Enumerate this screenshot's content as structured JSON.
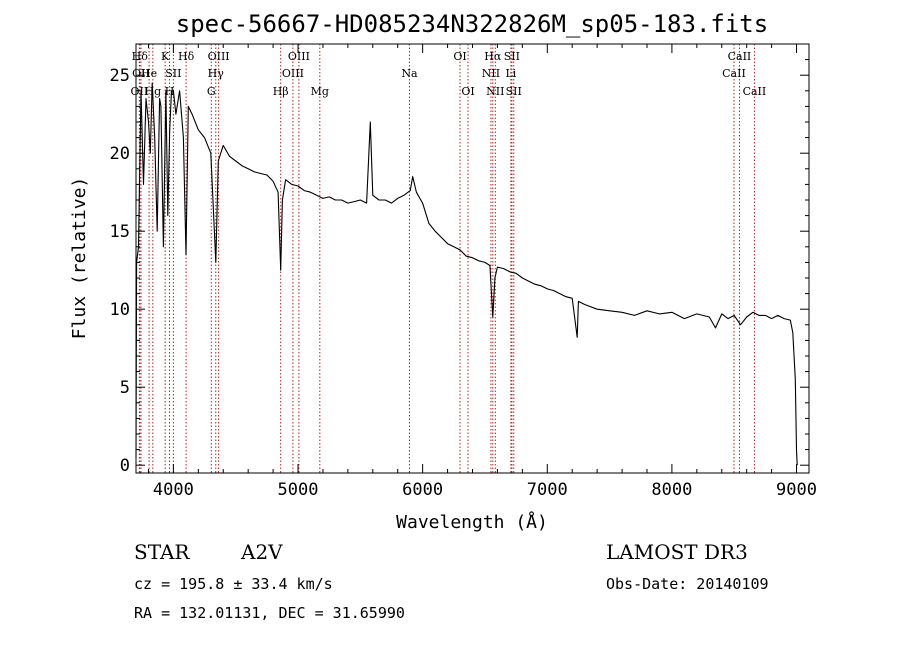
{
  "chart_data": {
    "type": "line",
    "title": "spec-56667-HD085234N322826M_sp05-183.fits",
    "xlabel": "Wavelength (Å)",
    "ylabel": "Flux (relative)",
    "xlim": [
      3700,
      9100
    ],
    "ylim": [
      -0.5,
      27
    ],
    "xticks": [
      4000,
      5000,
      6000,
      7000,
      8000,
      9000
    ],
    "yticks": [
      0,
      5,
      10,
      15,
      20,
      25
    ],
    "grid": false,
    "series": [
      {
        "name": "flux",
        "x": [
          3700,
          3705,
          3720,
          3740,
          3760,
          3780,
          3800,
          3815,
          3830,
          3850,
          3870,
          3889,
          3900,
          3920,
          3940,
          3955,
          3970,
          3985,
          4000,
          4020,
          4050,
          4080,
          4101,
          4120,
          4150,
          4200,
          4250,
          4300,
          4340,
          4360,
          4400,
          4450,
          4500,
          4550,
          4600,
          4650,
          4700,
          4750,
          4800,
          4840,
          4861,
          4875,
          4900,
          4950,
          5000,
          5050,
          5100,
          5150,
          5200,
          5250,
          5300,
          5350,
          5400,
          5450,
          5500,
          5550,
          5580,
          5600,
          5650,
          5700,
          5750,
          5800,
          5850,
          5900,
          5920,
          5950,
          6000,
          6050,
          6100,
          6150,
          6200,
          6250,
          6300,
          6350,
          6400,
          6450,
          6500,
          6540,
          6563,
          6580,
          6600,
          6650,
          6700,
          6750,
          6800,
          6850,
          6900,
          6950,
          7000,
          7050,
          7100,
          7150,
          7200,
          7240,
          7250,
          7300,
          7400,
          7500,
          7600,
          7700,
          7800,
          7900,
          8000,
          8100,
          8200,
          8300,
          8350,
          8400,
          8450,
          8500,
          8550,
          8600,
          8650,
          8700,
          8750,
          8800,
          8850,
          8900,
          8950,
          8970,
          8990,
          9000,
          9005
        ],
        "values": [
          0.5,
          13.0,
          14.0,
          24.0,
          18.0,
          23.5,
          22.0,
          20.0,
          24.5,
          21.0,
          15.0,
          23.5,
          23.0,
          14.0,
          24.0,
          16.0,
          21.5,
          24.0,
          24.0,
          22.5,
          24.0,
          21.0,
          13.5,
          23.0,
          22.5,
          21.5,
          21.0,
          20.0,
          13.0,
          19.5,
          20.5,
          19.8,
          19.5,
          19.2,
          19.0,
          18.8,
          18.7,
          18.6,
          18.2,
          17.5,
          12.5,
          17.0,
          18.3,
          18.0,
          17.9,
          17.6,
          17.5,
          17.3,
          17.1,
          17.2,
          17.0,
          17.0,
          16.8,
          16.9,
          17.0,
          16.8,
          22.0,
          17.3,
          17.0,
          17.0,
          16.8,
          17.1,
          17.3,
          17.6,
          18.5,
          17.5,
          16.8,
          15.5,
          15.0,
          14.6,
          14.2,
          14.0,
          13.8,
          13.4,
          13.3,
          13.1,
          13.0,
          12.8,
          9.5,
          12.0,
          12.7,
          12.6,
          12.4,
          12.3,
          12.0,
          11.8,
          11.6,
          11.5,
          11.3,
          11.2,
          11.0,
          10.8,
          10.7,
          8.2,
          10.5,
          10.3,
          10.0,
          9.9,
          9.8,
          9.6,
          9.9,
          9.7,
          9.8,
          9.4,
          9.7,
          9.5,
          8.8,
          9.7,
          9.4,
          9.6,
          9.0,
          9.5,
          9.8,
          9.6,
          9.6,
          9.4,
          9.6,
          9.4,
          9.3,
          8.5,
          5.5,
          1.0,
          0.0
        ],
        "color": "#000000"
      }
    ],
    "lines": [
      {
        "label": "Hδ",
        "x": 3730,
        "row": 1
      },
      {
        "label": "OII",
        "x": 3727,
        "row": 3
      },
      {
        "label": "OII",
        "x": 3740,
        "row": 2
      },
      {
        "label": "He",
        "x": 3805,
        "row": 2
      },
      {
        "label": "Hg",
        "x": 3835,
        "row": 3
      },
      {
        "label": "K",
        "x": 3934,
        "row": 1
      },
      {
        "label": "H",
        "x": 3969,
        "row": 3
      },
      {
        "label": "SII",
        "x": 4000,
        "row": 2
      },
      {
        "label": "Hδ",
        "x": 4102,
        "row": 1
      },
      {
        "label": "OIII",
        "x": 4363,
        "row": 1
      },
      {
        "label": "Hγ",
        "x": 4340,
        "row": 2
      },
      {
        "label": "G",
        "x": 4304,
        "row": 3
      },
      {
        "label": "Hβ",
        "x": 4861,
        "row": 3
      },
      {
        "label": "OIII",
        "x": 5007,
        "row": 1
      },
      {
        "label": "OIII",
        "x": 4959,
        "row": 2
      },
      {
        "label": "Mg",
        "x": 5175,
        "row": 3
      },
      {
        "label": "Na",
        "x": 5894,
        "row": 2
      },
      {
        "label": "OI",
        "x": 6300,
        "row": 1
      },
      {
        "label": "OI",
        "x": 6364,
        "row": 3
      },
      {
        "label": "Hα",
        "x": 6563,
        "row": 1
      },
      {
        "label": "NII",
        "x": 6548,
        "row": 2
      },
      {
        "label": "NII",
        "x": 6583,
        "row": 3
      },
      {
        "label": "SII",
        "x": 6716,
        "row": 1
      },
      {
        "label": "Li",
        "x": 6708,
        "row": 2
      },
      {
        "label": "SII",
        "x": 6731,
        "row": 3
      },
      {
        "label": "CaII",
        "x": 8542,
        "row": 1
      },
      {
        "label": "CaII",
        "x": 8498,
        "row": 2
      },
      {
        "label": "CaII",
        "x": 8662,
        "row": 3
      }
    ],
    "line_color": "#b22222"
  },
  "info": {
    "object_class": "STAR",
    "subclass": "A2V",
    "survey": "LAMOST DR3",
    "redshift": "cz = 195.8 ± 33.4 km/s",
    "obs_date": "Obs-Date: 20140109",
    "coords": "RA = 132.01131, DEC =  31.65990"
  }
}
